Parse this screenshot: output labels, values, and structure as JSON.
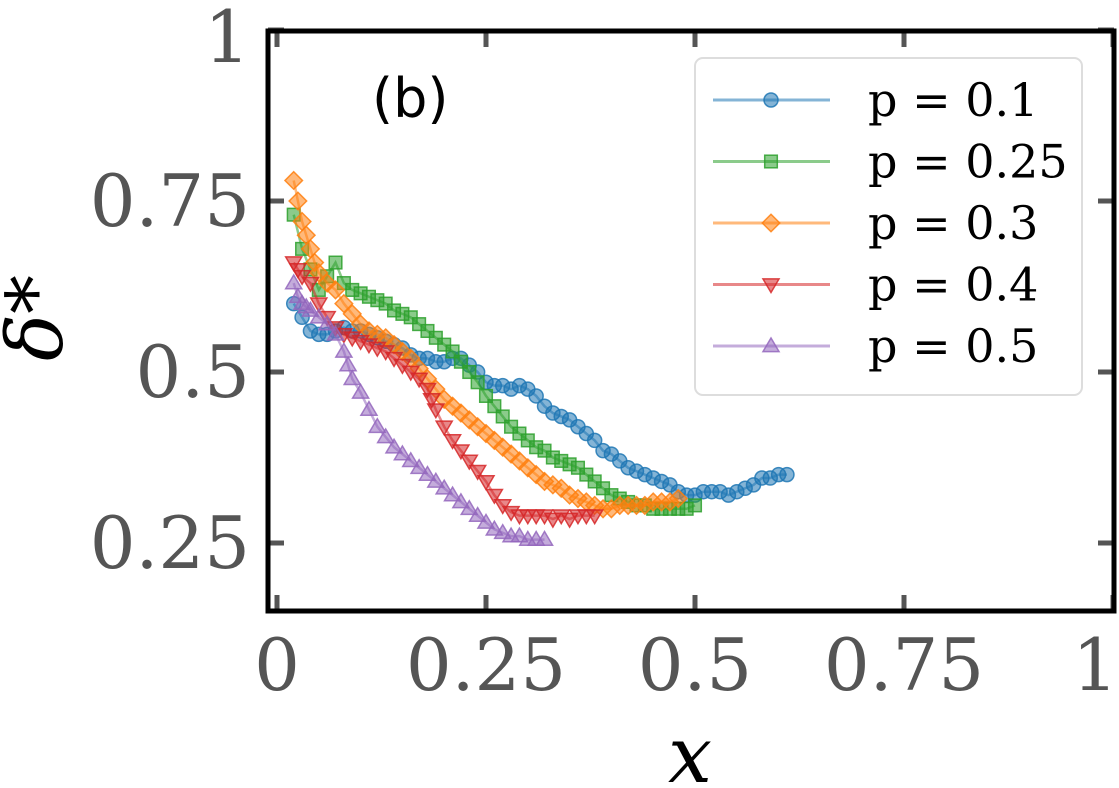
{
  "chart_data": {
    "type": "scatter",
    "panel_label": "(b)",
    "xlabel": "x",
    "ylabel": "δ*",
    "xlim": [
      0,
      1
    ],
    "ylim": [
      0.15,
      1.0
    ],
    "x_ticks": [
      0,
      0.25,
      0.5,
      0.75,
      1
    ],
    "x_tick_labels": [
      "0",
      "0.25",
      "0.5",
      "0.75",
      "1"
    ],
    "y_ticks": [
      0.25,
      0.5,
      0.75,
      1
    ],
    "y_tick_labels": [
      "0.25",
      "0.5",
      "0.75",
      "1"
    ],
    "grid": false,
    "legend_position": "top-right",
    "series": [
      {
        "name": "p = 0.1",
        "color": "#1f77b4",
        "marker": "circle",
        "points": [
          [
            0.02,
            0.6
          ],
          [
            0.03,
            0.58
          ],
          [
            0.04,
            0.56
          ],
          [
            0.05,
            0.555
          ],
          [
            0.06,
            0.555
          ],
          [
            0.07,
            0.56
          ],
          [
            0.08,
            0.565
          ],
          [
            0.09,
            0.56
          ],
          [
            0.1,
            0.56
          ],
          [
            0.11,
            0.555
          ],
          [
            0.12,
            0.55
          ],
          [
            0.13,
            0.545
          ],
          [
            0.14,
            0.54
          ],
          [
            0.15,
            0.535
          ],
          [
            0.16,
            0.525
          ],
          [
            0.17,
            0.52
          ],
          [
            0.18,
            0.52
          ],
          [
            0.19,
            0.515
          ],
          [
            0.2,
            0.515
          ],
          [
            0.21,
            0.52
          ],
          [
            0.22,
            0.52
          ],
          [
            0.23,
            0.51
          ],
          [
            0.24,
            0.5
          ],
          [
            0.25,
            0.485
          ],
          [
            0.26,
            0.48
          ],
          [
            0.27,
            0.48
          ],
          [
            0.28,
            0.475
          ],
          [
            0.29,
            0.48
          ],
          [
            0.3,
            0.475
          ],
          [
            0.31,
            0.465
          ],
          [
            0.32,
            0.45
          ],
          [
            0.33,
            0.44
          ],
          [
            0.34,
            0.435
          ],
          [
            0.35,
            0.43
          ],
          [
            0.36,
            0.42
          ],
          [
            0.37,
            0.41
          ],
          [
            0.38,
            0.4
          ],
          [
            0.39,
            0.385
          ],
          [
            0.4,
            0.38
          ],
          [
            0.41,
            0.37
          ],
          [
            0.42,
            0.36
          ],
          [
            0.43,
            0.355
          ],
          [
            0.44,
            0.35
          ],
          [
            0.45,
            0.345
          ],
          [
            0.46,
            0.34
          ],
          [
            0.47,
            0.335
          ],
          [
            0.48,
            0.325
          ],
          [
            0.49,
            0.32
          ],
          [
            0.5,
            0.32
          ],
          [
            0.51,
            0.325
          ],
          [
            0.52,
            0.325
          ],
          [
            0.53,
            0.325
          ],
          [
            0.54,
            0.32
          ],
          [
            0.55,
            0.325
          ],
          [
            0.56,
            0.33
          ],
          [
            0.57,
            0.335
          ],
          [
            0.58,
            0.345
          ],
          [
            0.59,
            0.345
          ],
          [
            0.6,
            0.35
          ],
          [
            0.61,
            0.35
          ]
        ]
      },
      {
        "name": "p = 0.25",
        "color": "#2ca02c",
        "marker": "square",
        "points": [
          [
            0.02,
            0.73
          ],
          [
            0.03,
            0.68
          ],
          [
            0.04,
            0.65
          ],
          [
            0.05,
            0.62
          ],
          [
            0.06,
            0.64
          ],
          [
            0.07,
            0.66
          ],
          [
            0.08,
            0.63
          ],
          [
            0.09,
            0.62
          ],
          [
            0.1,
            0.615
          ],
          [
            0.11,
            0.61
          ],
          [
            0.12,
            0.605
          ],
          [
            0.13,
            0.6
          ],
          [
            0.14,
            0.59
          ],
          [
            0.15,
            0.585
          ],
          [
            0.16,
            0.58
          ],
          [
            0.17,
            0.57
          ],
          [
            0.18,
            0.56
          ],
          [
            0.19,
            0.55
          ],
          [
            0.2,
            0.54
          ],
          [
            0.21,
            0.53
          ],
          [
            0.22,
            0.515
          ],
          [
            0.23,
            0.5
          ],
          [
            0.24,
            0.485
          ],
          [
            0.25,
            0.465
          ],
          [
            0.26,
            0.45
          ],
          [
            0.27,
            0.435
          ],
          [
            0.28,
            0.42
          ],
          [
            0.29,
            0.41
          ],
          [
            0.3,
            0.4
          ],
          [
            0.31,
            0.39
          ],
          [
            0.32,
            0.385
          ],
          [
            0.33,
            0.375
          ],
          [
            0.34,
            0.37
          ],
          [
            0.35,
            0.365
          ],
          [
            0.36,
            0.36
          ],
          [
            0.37,
            0.35
          ],
          [
            0.38,
            0.34
          ],
          [
            0.39,
            0.33
          ],
          [
            0.4,
            0.32
          ],
          [
            0.41,
            0.315
          ],
          [
            0.42,
            0.31
          ],
          [
            0.43,
            0.305
          ],
          [
            0.44,
            0.305
          ],
          [
            0.45,
            0.3
          ],
          [
            0.46,
            0.3
          ],
          [
            0.47,
            0.3
          ],
          [
            0.48,
            0.3
          ],
          [
            0.49,
            0.3
          ],
          [
            0.5,
            0.305
          ]
        ]
      },
      {
        "name": "p = 0.3",
        "color": "#ff7f0e",
        "marker": "diamond",
        "points": [
          [
            0.02,
            0.78
          ],
          [
            0.025,
            0.75
          ],
          [
            0.03,
            0.72
          ],
          [
            0.035,
            0.7
          ],
          [
            0.04,
            0.68
          ],
          [
            0.045,
            0.66
          ],
          [
            0.05,
            0.645
          ],
          [
            0.06,
            0.63
          ],
          [
            0.07,
            0.62
          ],
          [
            0.08,
            0.6
          ],
          [
            0.09,
            0.585
          ],
          [
            0.1,
            0.57
          ],
          [
            0.11,
            0.56
          ],
          [
            0.12,
            0.555
          ],
          [
            0.13,
            0.55
          ],
          [
            0.14,
            0.54
          ],
          [
            0.15,
            0.53
          ],
          [
            0.16,
            0.52
          ],
          [
            0.17,
            0.505
          ],
          [
            0.18,
            0.49
          ],
          [
            0.19,
            0.475
          ],
          [
            0.2,
            0.46
          ],
          [
            0.21,
            0.45
          ],
          [
            0.22,
            0.44
          ],
          [
            0.23,
            0.43
          ],
          [
            0.24,
            0.42
          ],
          [
            0.25,
            0.41
          ],
          [
            0.26,
            0.4
          ],
          [
            0.27,
            0.39
          ],
          [
            0.28,
            0.38
          ],
          [
            0.29,
            0.37
          ],
          [
            0.3,
            0.36
          ],
          [
            0.31,
            0.35
          ],
          [
            0.32,
            0.34
          ],
          [
            0.33,
            0.335
          ],
          [
            0.34,
            0.33
          ],
          [
            0.35,
            0.32
          ],
          [
            0.36,
            0.315
          ],
          [
            0.37,
            0.31
          ],
          [
            0.38,
            0.305
          ],
          [
            0.39,
            0.3
          ],
          [
            0.4,
            0.3
          ],
          [
            0.41,
            0.305
          ],
          [
            0.42,
            0.305
          ],
          [
            0.43,
            0.305
          ],
          [
            0.44,
            0.305
          ],
          [
            0.45,
            0.31
          ],
          [
            0.46,
            0.31
          ],
          [
            0.47,
            0.31
          ],
          [
            0.48,
            0.315
          ]
        ]
      },
      {
        "name": "p = 0.4",
        "color": "#d62728",
        "marker": "triangle-down",
        "points": [
          [
            0.02,
            0.66
          ],
          [
            0.025,
            0.65
          ],
          [
            0.03,
            0.64
          ],
          [
            0.04,
            0.63
          ],
          [
            0.05,
            0.6
          ],
          [
            0.06,
            0.58
          ],
          [
            0.07,
            0.565
          ],
          [
            0.08,
            0.555
          ],
          [
            0.09,
            0.55
          ],
          [
            0.1,
            0.545
          ],
          [
            0.11,
            0.54
          ],
          [
            0.12,
            0.535
          ],
          [
            0.13,
            0.53
          ],
          [
            0.14,
            0.52
          ],
          [
            0.15,
            0.51
          ],
          [
            0.16,
            0.5
          ],
          [
            0.17,
            0.49
          ],
          [
            0.18,
            0.475
          ],
          [
            0.185,
            0.46
          ],
          [
            0.19,
            0.445
          ],
          [
            0.2,
            0.42
          ],
          [
            0.21,
            0.4
          ],
          [
            0.22,
            0.385
          ],
          [
            0.23,
            0.37
          ],
          [
            0.24,
            0.355
          ],
          [
            0.25,
            0.34
          ],
          [
            0.26,
            0.32
          ],
          [
            0.27,
            0.305
          ],
          [
            0.28,
            0.295
          ],
          [
            0.29,
            0.29
          ],
          [
            0.3,
            0.29
          ],
          [
            0.31,
            0.29
          ],
          [
            0.32,
            0.29
          ],
          [
            0.33,
            0.285
          ],
          [
            0.34,
            0.29
          ],
          [
            0.35,
            0.285
          ],
          [
            0.36,
            0.29
          ],
          [
            0.37,
            0.29
          ],
          [
            0.38,
            0.29
          ]
        ]
      },
      {
        "name": "p = 0.5",
        "color": "#9467bd",
        "marker": "triangle-up",
        "points": [
          [
            0.02,
            0.63
          ],
          [
            0.025,
            0.61
          ],
          [
            0.03,
            0.6
          ],
          [
            0.035,
            0.595
          ],
          [
            0.04,
            0.59
          ],
          [
            0.05,
            0.58
          ],
          [
            0.06,
            0.57
          ],
          [
            0.07,
            0.555
          ],
          [
            0.08,
            0.53
          ],
          [
            0.085,
            0.51
          ],
          [
            0.09,
            0.49
          ],
          [
            0.1,
            0.47
          ],
          [
            0.11,
            0.445
          ],
          [
            0.12,
            0.42
          ],
          [
            0.13,
            0.405
          ],
          [
            0.14,
            0.39
          ],
          [
            0.15,
            0.38
          ],
          [
            0.16,
            0.37
          ],
          [
            0.17,
            0.36
          ],
          [
            0.18,
            0.35
          ],
          [
            0.19,
            0.34
          ],
          [
            0.2,
            0.33
          ],
          [
            0.21,
            0.32
          ],
          [
            0.22,
            0.31
          ],
          [
            0.23,
            0.3
          ],
          [
            0.24,
            0.29
          ],
          [
            0.25,
            0.28
          ],
          [
            0.26,
            0.27
          ],
          [
            0.27,
            0.265
          ],
          [
            0.28,
            0.26
          ],
          [
            0.29,
            0.26
          ],
          [
            0.3,
            0.255
          ],
          [
            0.31,
            0.255
          ],
          [
            0.32,
            0.255
          ]
        ]
      }
    ]
  }
}
